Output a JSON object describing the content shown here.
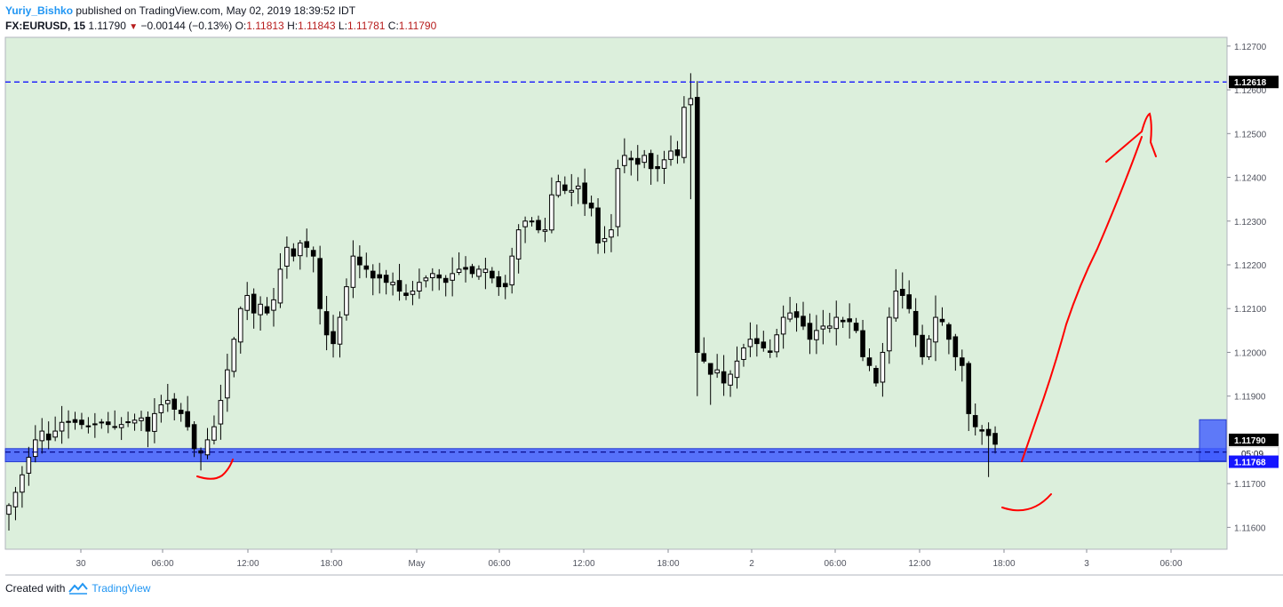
{
  "header": {
    "author": "Yuriy_Bishko",
    "published_text": "published on TradingView.com, May 02, 2019 18:39:52 IDT",
    "symbol": "FX:EURUSD, 15",
    "last_price": "1.11790",
    "change": "−0.00144 (−0.13%)",
    "o_label": "O:",
    "o_value": "1.11813",
    "h_label": "H:",
    "h_value": "1.11843",
    "l_label": "L:",
    "l_value": "1.11781",
    "c_label": "C:",
    "c_value": "1.11790"
  },
  "footer": {
    "created_with": "Created with",
    "brand": "TradingView"
  },
  "colors": {
    "plot_bg": "#dcefdc",
    "candle": "#000000",
    "support_zone": "#3e5bff",
    "level_line": "#0000ff",
    "drawing": "#ff0000",
    "price_label_bg": "#000000",
    "level_label_bg": "#1515ff"
  },
  "chart_data": {
    "type": "candlestick",
    "symbol": "FX:EURUSD",
    "interval": "15",
    "ylim": [
      1.1155,
      1.1272
    ],
    "yticks": [
      {
        "value": 1.127,
        "label": "1.12700"
      },
      {
        "value": 1.126,
        "label": "1.12600"
      },
      {
        "value": 1.125,
        "label": "1.12500"
      },
      {
        "value": 1.124,
        "label": "1.12400"
      },
      {
        "value": 1.123,
        "label": "1.12300"
      },
      {
        "value": 1.122,
        "label": "1.12200"
      },
      {
        "value": 1.121,
        "label": "1.12100"
      },
      {
        "value": 1.12,
        "label": "1.12000"
      },
      {
        "value": 1.119,
        "label": "1.11900"
      },
      {
        "value": 1.117,
        "label": "1.11700"
      },
      {
        "value": 1.116,
        "label": "1.11600"
      }
    ],
    "xticks": [
      "30",
      "06:00",
      "12:00",
      "18:00",
      "May",
      "06:00",
      "12:00",
      "18:00",
      "2",
      "06:00",
      "12:00",
      "18:00",
      "3",
      "06:00"
    ],
    "resistance_level": {
      "value": 1.12618,
      "label": "1.12618"
    },
    "support_level": {
      "value": 1.11768,
      "label": "1.11768"
    },
    "support_zone": {
      "from": 1.1175,
      "to": 1.1178
    },
    "last_price": {
      "value": 1.1179,
      "label": "1.11790"
    },
    "countdown": "05:09",
    "path": [
      [
        0,
        1.1165
      ],
      [
        1,
        1.1168
      ],
      [
        2,
        1.1172
      ],
      [
        3,
        1.1176
      ],
      [
        4,
        1.118
      ],
      [
        5,
        1.1182
      ],
      [
        6,
        1.118
      ],
      [
        8,
        1.1184
      ],
      [
        10,
        1.1184
      ],
      [
        12,
        1.1183
      ],
      [
        14,
        1.1184
      ],
      [
        16,
        1.1183
      ],
      [
        18,
        1.1184
      ],
      [
        20,
        1.1185
      ],
      [
        21,
        1.1182
      ],
      [
        22,
        1.1186
      ],
      [
        23,
        1.1188
      ],
      [
        24,
        1.1189
      ],
      [
        25,
        1.1187
      ],
      [
        26,
        1.1186
      ],
      [
        27,
        1.1183
      ],
      [
        28,
        1.1178
      ],
      [
        29,
        1.1177
      ],
      [
        30,
        1.118
      ],
      [
        31,
        1.1183
      ],
      [
        32,
        1.1189
      ],
      [
        33,
        1.1196
      ],
      [
        34,
        1.1203
      ],
      [
        35,
        1.121
      ],
      [
        36,
        1.1213
      ],
      [
        37,
        1.1209
      ],
      [
        38,
        1.1211
      ],
      [
        39,
        1.1209
      ],
      [
        40,
        1.1212
      ],
      [
        41,
        1.1219
      ],
      [
        42,
        1.1224
      ],
      [
        43,
        1.1222
      ],
      [
        44,
        1.1225
      ],
      [
        45,
        1.1224
      ],
      [
        46,
        1.1222
      ],
      [
        47,
        1.121
      ],
      [
        48,
        1.1204
      ],
      [
        49,
        1.1202
      ],
      [
        50,
        1.1208
      ],
      [
        51,
        1.1215
      ],
      [
        52,
        1.1222
      ],
      [
        53,
        1.122
      ],
      [
        54,
        1.1219
      ],
      [
        55,
        1.1217
      ],
      [
        56,
        1.1217
      ],
      [
        57,
        1.1216
      ],
      [
        58,
        1.1216
      ],
      [
        59,
        1.1214
      ],
      [
        60,
        1.1213
      ],
      [
        61,
        1.1214
      ],
      [
        62,
        1.1216
      ],
      [
        63,
        1.1217
      ],
      [
        64,
        1.1218
      ],
      [
        65,
        1.1217
      ],
      [
        66,
        1.1216
      ],
      [
        67,
        1.1218
      ],
      [
        68,
        1.1219
      ],
      [
        69,
        1.1219
      ],
      [
        70,
        1.1218
      ],
      [
        71,
        1.1219
      ],
      [
        72,
        1.1219
      ],
      [
        73,
        1.1217
      ],
      [
        74,
        1.1215
      ],
      [
        75,
        1.1215
      ],
      [
        76,
        1.1222
      ],
      [
        77,
        1.1228
      ],
      [
        78,
        1.123
      ],
      [
        79,
        1.123
      ],
      [
        80,
        1.1228
      ],
      [
        81,
        1.1228
      ],
      [
        82,
        1.1236
      ],
      [
        83,
        1.1239
      ],
      [
        84,
        1.1237
      ],
      [
        85,
        1.1237
      ],
      [
        86,
        1.1238
      ],
      [
        87,
        1.1234
      ],
      [
        88,
        1.1233
      ],
      [
        89,
        1.1225
      ],
      [
        90,
        1.1226
      ],
      [
        91,
        1.1228
      ],
      [
        92,
        1.1242
      ],
      [
        93,
        1.1245
      ],
      [
        94,
        1.1244
      ],
      [
        95,
        1.1243
      ],
      [
        96,
        1.1245
      ],
      [
        97,
        1.1242
      ],
      [
        98,
        1.1242
      ],
      [
        99,
        1.1244
      ],
      [
        100,
        1.1246
      ],
      [
        101,
        1.1245
      ],
      [
        102,
        1.1256
      ],
      [
        103,
        1.1258
      ],
      [
        104,
        1.12
      ],
      [
        105,
        1.1198
      ],
      [
        106,
        1.1195
      ],
      [
        107,
        1.1196
      ],
      [
        108,
        1.1193
      ],
      [
        109,
        1.1195
      ],
      [
        110,
        1.1198
      ],
      [
        111,
        1.1201
      ],
      [
        112,
        1.1203
      ],
      [
        113,
        1.1202
      ],
      [
        114,
        1.1201
      ],
      [
        115,
        1.12
      ],
      [
        116,
        1.1204
      ],
      [
        117,
        1.1208
      ],
      [
        118,
        1.1209
      ],
      [
        119,
        1.1208
      ],
      [
        120,
        1.1206
      ],
      [
        121,
        1.1203
      ],
      [
        122,
        1.1205
      ],
      [
        123,
        1.1206
      ],
      [
        124,
        1.1206
      ],
      [
        125,
        1.1208
      ],
      [
        126,
        1.1207
      ],
      [
        127,
        1.1207
      ],
      [
        128,
        1.1205
      ],
      [
        129,
        1.1199
      ],
      [
        130,
        1.1197
      ],
      [
        131,
        1.1193
      ],
      [
        132,
        1.12
      ],
      [
        133,
        1.1208
      ],
      [
        134,
        1.1214
      ],
      [
        135,
        1.1213
      ],
      [
        136,
        1.121
      ],
      [
        137,
        1.1204
      ],
      [
        138,
        1.1199
      ],
      [
        139,
        1.1203
      ],
      [
        140,
        1.1208
      ],
      [
        141,
        1.1207
      ],
      [
        142,
        1.1203
      ],
      [
        143,
        1.1199
      ],
      [
        144,
        1.1197
      ],
      [
        145,
        1.1186
      ],
      [
        146,
        1.1183
      ],
      [
        147,
        1.1182
      ],
      [
        148,
        1.1181
      ],
      [
        149,
        1.1179
      ]
    ],
    "spikes": [
      {
        "i": 103,
        "high": 1.12638,
        "low": 1.1235
      },
      {
        "i": 104,
        "high": 1.1262,
        "low": 1.119
      },
      {
        "i": 106,
        "high": 1.1196,
        "low": 1.1188
      },
      {
        "i": 134,
        "high": 1.1219,
        "low": 1.1207
      },
      {
        "i": 140,
        "high": 1.1213,
        "low": 1.1198
      },
      {
        "i": 148,
        "high": 1.1184,
        "low": 1.11715
      },
      {
        "i": 2,
        "high": 1.1174,
        "low": 1.11645
      }
    ],
    "candle_count": 150
  }
}
